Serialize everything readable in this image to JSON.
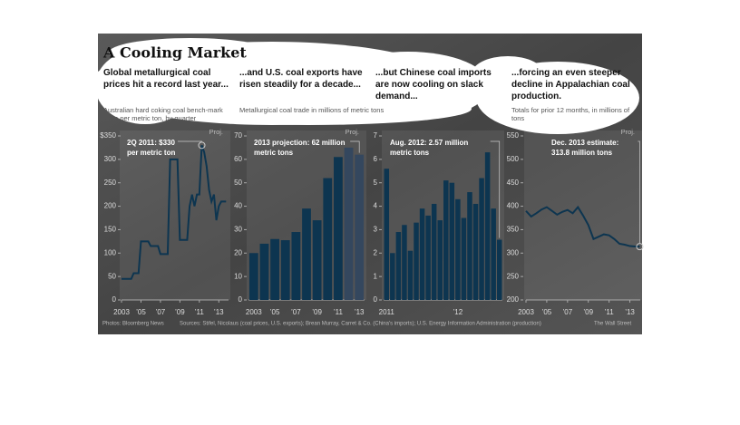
{
  "title": "A Cooling Market",
  "footer": [
    "Photos: Bloomberg News",
    "Sources: Stifel, Nicolaus (coal prices, U.S. exports); Brean Murray, Carret & Co. (China's imports); U.S. Energy Information Administration (production)",
    "The Wall Street"
  ],
  "chart_data": [
    {
      "type": "line",
      "title": "Global metallurgical coal prices hit a record last year...",
      "subtitle": "Australian hard coking coal bench-mark price per metric ton, by quarter",
      "proj_label": "Proj.",
      "annotation": [
        "2Q 2011: $330",
        "per metric ton"
      ],
      "color": "#0d3550",
      "x": [
        2003,
        2003.25,
        2003.5,
        2003.75,
        2004,
        2004.25,
        2004.5,
        2004.75,
        2005,
        2005.25,
        2005.5,
        2005.75,
        2006,
        2006.25,
        2006.5,
        2006.75,
        2007,
        2007.25,
        2007.5,
        2007.75,
        2008,
        2008.25,
        2008.5,
        2008.75,
        2009,
        2009.25,
        2009.5,
        2009.75,
        2010,
        2010.25,
        2010.5,
        2010.75,
        2011,
        2011.25,
        2011.5,
        2011.75,
        2012,
        2012.25,
        2012.5,
        2012.75,
        2013,
        2013.25,
        2013.5,
        2013.75
      ],
      "values": [
        45,
        45,
        45,
        45,
        45,
        57,
        57,
        57,
        125,
        125,
        125,
        125,
        115,
        115,
        115,
        115,
        98,
        98,
        98,
        98,
        300,
        300,
        300,
        300,
        128,
        128,
        128,
        128,
        200,
        225,
        200,
        225,
        225,
        330,
        315,
        285,
        235,
        210,
        225,
        170,
        200,
        210,
        210,
        210
      ],
      "xlim": [
        2003,
        2014
      ],
      "xticks": [
        2003,
        {
          "value": 2005,
          "label": "’05"
        },
        {
          "value": 2007,
          "label": "’07"
        },
        {
          "value": 2009,
          "label": "’09"
        },
        {
          "value": 2011,
          "label": "’11"
        },
        {
          "value": 2013,
          "label": "’13"
        }
      ],
      "ylim": [
        0,
        350
      ],
      "yticks": [
        0,
        50,
        100,
        150,
        200,
        250,
        300,
        {
          "value": 350,
          "label": "$350"
        }
      ]
    },
    {
      "type": "bar",
      "title": "...and U.S. coal exports have risen steadily for a decade...",
      "subtitle": "Metallurgical coal trade in millions of metric tons",
      "proj_label": "Proj.",
      "annotation": [
        "2013 projection: 62 million",
        "metric tons"
      ],
      "categories": [
        "2003",
        null,
        "’05",
        null,
        "’07",
        null,
        "’09",
        null,
        "’11",
        null,
        "’13"
      ],
      "values": [
        20,
        24,
        26,
        25.5,
        29,
        39,
        34,
        52,
        61,
        65,
        62
      ],
      "colors": [
        "#0d3550",
        "#0d3550",
        "#0d3550",
        "#0d3550",
        "#0d3550",
        "#0d3550",
        "#0d3550",
        "#0d3550",
        "#0d3550",
        "#34475e",
        "#34475e"
      ],
      "ylim": [
        0,
        70
      ],
      "yticks": [
        0,
        10,
        20,
        30,
        40,
        50,
        60,
        70
      ]
    },
    {
      "type": "bar",
      "title": "...but Chinese coal imports are now cooling on slack demand...",
      "annotation": [
        "Aug. 2012: 2.57 million",
        "metric tons"
      ],
      "categories": [
        "2011",
        null,
        null,
        null,
        null,
        null,
        null,
        null,
        null,
        null,
        null,
        null,
        "’12",
        null,
        null,
        null,
        null,
        null,
        null,
        null
      ],
      "values": [
        5.6,
        2.0,
        2.9,
        3.2,
        2.1,
        3.3,
        3.9,
        3.6,
        4.1,
        3.4,
        5.1,
        5.0,
        4.3,
        3.5,
        4.6,
        4.1,
        5.2,
        6.3,
        3.9,
        2.57
      ],
      "color": "#0d3550",
      "ylim": [
        0,
        7
      ],
      "yticks": [
        0,
        1,
        2,
        3,
        4,
        5,
        6,
        7
      ]
    },
    {
      "type": "line",
      "title": "...forcing an even steeper decline in Appalachian coal production.",
      "subtitle": "Totals for prior 12 months, in millions of tons",
      "proj_label": "Proj.",
      "annotation": [
        "Dec. 2013 estimate:",
        "313.8 million tons"
      ],
      "color": "#0d3550",
      "x": [
        2003,
        2003.5,
        2004,
        2004.5,
        2005,
        2005.5,
        2006,
        2006.5,
        2007,
        2007.5,
        2008,
        2008.5,
        2009,
        2009.5,
        2010,
        2010.5,
        2011,
        2011.5,
        2012,
        2012.5,
        2013,
        2013.5,
        2013.95
      ],
      "values": [
        390,
        378,
        385,
        393,
        398,
        390,
        382,
        388,
        392,
        385,
        398,
        380,
        360,
        330,
        335,
        340,
        338,
        330,
        320,
        318,
        315,
        314,
        313.8
      ],
      "xlim": [
        2003,
        2014
      ],
      "xticks": [
        2003,
        {
          "value": 2005,
          "label": "’05"
        },
        {
          "value": 2007,
          "label": "’07"
        },
        {
          "value": 2009,
          "label": "’09"
        },
        {
          "value": 2011,
          "label": "’11"
        },
        {
          "value": 2013,
          "label": "’13"
        }
      ],
      "ylim": [
        200,
        550
      ],
      "yticks": [
        200,
        250,
        300,
        350,
        400,
        450,
        500,
        550
      ]
    }
  ]
}
